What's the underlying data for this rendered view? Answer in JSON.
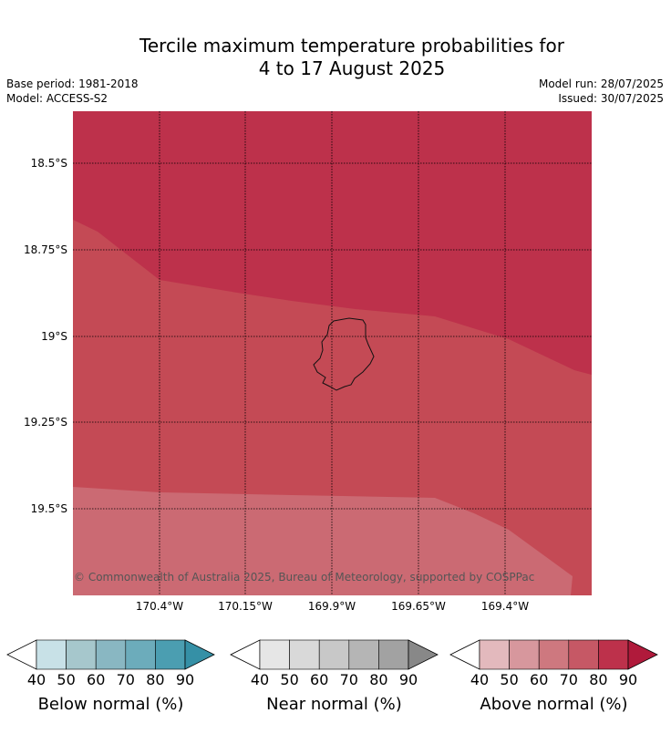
{
  "header": {
    "title_line1": "Tercile maximum temperature probabilities for",
    "title_line2": "4 to 17 August 2025",
    "base_period": "Base period: 1981-2018",
    "model": "Model: ACCESS-S2",
    "model_run": "Model run: 28/07/2025",
    "issued": "Issued: 30/07/2025"
  },
  "map": {
    "lat_labels": [
      "18.5°S",
      "18.75°S",
      "19°S",
      "19.25°S",
      "19.5°S"
    ],
    "lon_labels": [
      "170.4°W",
      "170.15°W",
      "169.9°W",
      "169.65°W",
      "169.4°W"
    ],
    "credit": "© Commonwealth of Australia 2025, Bureau of Meteorology, supported by COSPPac",
    "zone_colors": {
      "above_80_90": "#bd314b",
      "above_70_80": "#c44a55",
      "above_60_70": "#cb6a73"
    }
  },
  "legends": [
    {
      "name": "below",
      "label": "Below normal (%)",
      "ticks": [
        "40",
        "50",
        "60",
        "70",
        "80",
        "90"
      ],
      "colors": [
        "#ffffff",
        "#c8e1e7",
        "#a6c7cc",
        "#89b7c2",
        "#6cacbb",
        "#4b9eb1",
        "#3590a6"
      ]
    },
    {
      "name": "near",
      "label": "Near normal (%)",
      "ticks": [
        "40",
        "50",
        "60",
        "70",
        "80",
        "90"
      ],
      "colors": [
        "#ffffff",
        "#e6e6e6",
        "#d9d9d9",
        "#c8c8c8",
        "#b5b5b5",
        "#a2a2a2",
        "#888888"
      ]
    },
    {
      "name": "above",
      "label": "Above normal (%)",
      "ticks": [
        "40",
        "50",
        "60",
        "70",
        "80",
        "90"
      ],
      "colors": [
        "#ffffff",
        "#e3b9bd",
        "#d7979d",
        "#ce787f",
        "#c65865",
        "#bd314b",
        "#b01a3b"
      ]
    }
  ]
}
